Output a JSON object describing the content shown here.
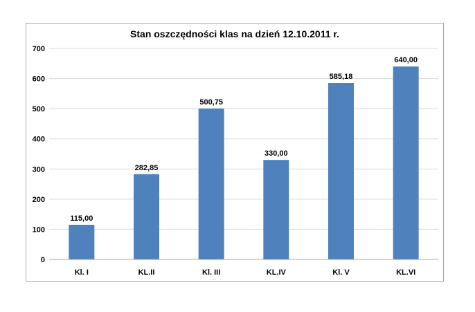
{
  "chart_data": {
    "type": "bar",
    "title": "Stan oszczędności klas na dzień 12.10.2011 r.",
    "categories": [
      "Kl. I",
      "KL.II",
      "Kl. III",
      "KL.IV",
      "Kl. V",
      "KL.VI"
    ],
    "values": [
      115.0,
      282.85,
      500.75,
      330.0,
      585.18,
      640.0
    ],
    "data_labels": [
      "115,00",
      "282,85",
      "500,75",
      "330,00",
      "585,18",
      "640,00"
    ],
    "xlabel": "",
    "ylabel": "",
    "ylim": [
      0,
      700
    ],
    "yticks": [
      0,
      100,
      200,
      300,
      400,
      500,
      600,
      700
    ],
    "grid": true,
    "legend": "none",
    "colors": {
      "bar": "#4f81bd",
      "grid": "#d9d9d9",
      "axis": "#a6a6a6"
    }
  }
}
